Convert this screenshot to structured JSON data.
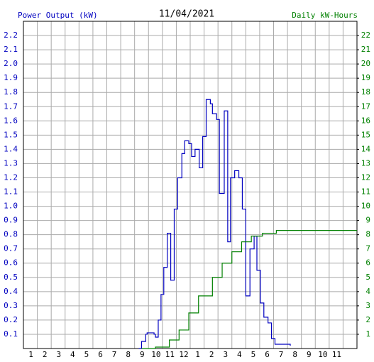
{
  "chart_data": {
    "type": "line",
    "step": true,
    "title": "11/04/2021",
    "ylabel": "Power Output (kW)",
    "y2label": "Daily kW-Hours",
    "xlim": [
      0,
      24
    ],
    "xticks": [
      1,
      2,
      3,
      4,
      5,
      6,
      7,
      8,
      9,
      10,
      11,
      12,
      {
        "value": 13,
        "label": "1"
      },
      {
        "value": 14,
        "label": "2"
      },
      {
        "value": 15,
        "label": "3"
      },
      {
        "value": 16,
        "label": "4"
      },
      {
        "value": 17,
        "label": "5"
      },
      {
        "value": 18,
        "label": "6"
      },
      {
        "value": 19,
        "label": "7"
      },
      {
        "value": 20,
        "label": "8"
      },
      {
        "value": 21,
        "label": "9"
      },
      {
        "value": 22,
        "label": "10"
      },
      {
        "value": 23,
        "label": "11"
      }
    ],
    "ylim": [
      0,
      2.3
    ],
    "yticks": [
      0.1,
      0.2,
      0.3,
      0.4,
      0.5,
      0.6,
      0.7,
      0.8,
      0.9,
      {
        "value": 1.0,
        "label": "1.0"
      },
      1.1,
      1.2,
      1.3,
      1.4,
      1.5,
      1.6,
      1.7,
      1.8,
      1.9,
      {
        "value": 2.0,
        "label": "2.0"
      },
      2.1,
      2.2
    ],
    "y2lim": [
      0,
      23
    ],
    "y2ticks": [
      1,
      2,
      3,
      4,
      5,
      6,
      7,
      8,
      9,
      10,
      11,
      12,
      13,
      14,
      15,
      16,
      17,
      18,
      19,
      20,
      21,
      22
    ],
    "grid": true,
    "series": [
      {
        "name": "Power Output (kW)",
        "color": "#0000c0",
        "x": [
          8.3,
          8.5,
          8.8,
          8.9,
          9.4,
          9.5,
          9.7,
          9.9,
          10.1,
          10.35,
          10.6,
          10.85,
          11.1,
          11.4,
          11.6,
          11.9,
          12.1,
          12.35,
          12.65,
          12.9,
          13.15,
          13.45,
          13.6,
          13.9,
          14.1,
          14.45,
          14.7,
          14.9,
          15.2,
          15.5,
          15.75,
          16.0,
          16.3,
          16.6,
          16.8,
          17.05,
          17.3,
          17.6,
          17.85,
          18.1,
          19.2
        ],
        "values": [
          0,
          0.05,
          0.1,
          0.11,
          0.1,
          0.08,
          0.2,
          0.38,
          0.57,
          0.81,
          0.48,
          0.98,
          1.2,
          1.37,
          1.46,
          1.44,
          1.35,
          1.4,
          1.27,
          1.49,
          1.75,
          1.72,
          1.65,
          1.61,
          1.09,
          1.67,
          0.75,
          1.2,
          1.25,
          1.2,
          0.98,
          0.37,
          0.7,
          0.79,
          0.55,
          0.32,
          0.22,
          0.18,
          0.07,
          0.03,
          0.02
        ]
      },
      {
        "name": "Daily kW-Hours",
        "color": "#008000",
        "axis": "y2",
        "x": [
          8.5,
          9.5,
          10.5,
          11.2,
          11.9,
          12.6,
          13.6,
          14.3,
          15.0,
          15.7,
          16.4,
          17.2,
          18.2,
          24
        ],
        "values": [
          0,
          0.1,
          0.6,
          1.3,
          2.5,
          3.7,
          5.0,
          6.0,
          6.8,
          7.5,
          7.9,
          8.1,
          8.3,
          8.3
        ]
      }
    ]
  }
}
